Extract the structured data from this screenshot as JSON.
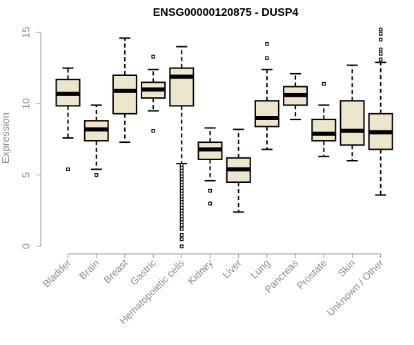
{
  "chart_data": {
    "type": "boxplot",
    "title": "ENSG00000120875 - DUSP4",
    "xlabel": "",
    "ylabel": "Expression",
    "ylim": [
      0,
      15
    ],
    "yticks": [
      0,
      5,
      10,
      15
    ],
    "colors": {
      "box_fill": "#ede5cc",
      "stroke": "#000000",
      "axis": "#8c8c8c"
    },
    "categories": [
      "Bladder",
      "Brain",
      "Breast",
      "Gastric",
      "Hematopoietic cells",
      "Kidney",
      "Liver",
      "Lung",
      "Pancreas",
      "Prostate",
      "Skin",
      "Unknown / Other"
    ],
    "boxes": [
      {
        "category": "Bladder",
        "whisker_low": 7.6,
        "q1": 9.85,
        "median": 10.7,
        "q3": 11.7,
        "whisker_high": 12.5,
        "outliers": [
          5.4
        ]
      },
      {
        "category": "Brain",
        "whisker_low": 5.4,
        "q1": 7.4,
        "median": 8.2,
        "q3": 8.8,
        "whisker_high": 9.9,
        "outliers": [
          5.0
        ]
      },
      {
        "category": "Breast",
        "whisker_low": 7.3,
        "q1": 9.3,
        "median": 10.9,
        "q3": 12.0,
        "whisker_high": 14.6,
        "outliers": []
      },
      {
        "category": "Gastric",
        "whisker_low": 9.5,
        "q1": 10.4,
        "median": 11.0,
        "q3": 11.5,
        "whisker_high": 12.4,
        "outliers": [
          13.3,
          8.1
        ]
      },
      {
        "category": "Hematopoietic cells",
        "whisker_low": 5.8,
        "q1": 9.85,
        "median": 11.9,
        "q3": 12.5,
        "whisker_high": 14.0,
        "outliers": [
          5.7,
          5.5,
          5.3,
          5.1,
          4.9,
          4.7,
          4.5,
          4.3,
          4.1,
          3.9,
          3.7,
          3.5,
          3.3,
          3.1,
          2.9,
          2.7,
          2.5,
          2.3,
          2.1,
          1.9,
          1.7,
          1.5,
          1.3,
          1.2,
          0.8,
          0.5,
          0.0
        ]
      },
      {
        "category": "Kidney",
        "whisker_low": 4.6,
        "q1": 6.1,
        "median": 6.8,
        "q3": 7.3,
        "whisker_high": 8.3,
        "outliers": [
          3.9,
          3.0
        ]
      },
      {
        "category": "Liver",
        "whisker_low": 2.4,
        "q1": 4.5,
        "median": 5.4,
        "q3": 6.2,
        "whisker_high": 8.2,
        "outliers": []
      },
      {
        "category": "Lung",
        "whisker_low": 6.8,
        "q1": 8.4,
        "median": 9.0,
        "q3": 10.2,
        "whisker_high": 12.4,
        "outliers": [
          14.2,
          13.2
        ]
      },
      {
        "category": "Pancreas",
        "whisker_low": 8.9,
        "q1": 9.9,
        "median": 10.6,
        "q3": 11.2,
        "whisker_high": 12.1,
        "outliers": []
      },
      {
        "category": "Prostate",
        "whisker_low": 6.3,
        "q1": 7.4,
        "median": 7.9,
        "q3": 8.9,
        "whisker_high": 9.9,
        "outliers": [
          11.4
        ]
      },
      {
        "category": "Skin",
        "whisker_low": 6.0,
        "q1": 7.1,
        "median": 8.1,
        "q3": 10.2,
        "whisker_high": 12.7,
        "outliers": []
      },
      {
        "category": "Unknown / Other",
        "whisker_low": 3.6,
        "q1": 6.8,
        "median": 8.0,
        "q3": 9.3,
        "whisker_high": 12.9,
        "outliers": [
          15.2,
          14.9,
          14.5,
          13.8,
          13.5,
          13.1
        ]
      }
    ]
  }
}
